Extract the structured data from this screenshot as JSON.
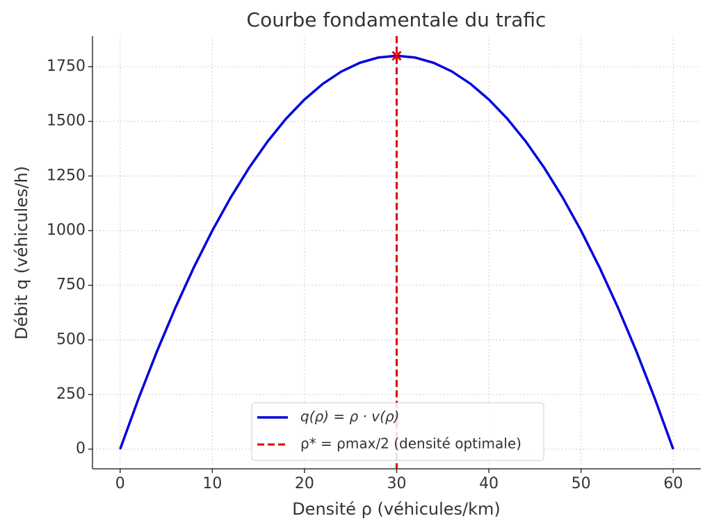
{
  "chart_data": {
    "type": "line",
    "title": "Courbe fondamentale du trafic",
    "x_label": "Densité ρ (véhicules/km)",
    "y_label": "Débit q (véhicules/h)",
    "x": [
      0,
      2,
      4,
      6,
      8,
      10,
      12,
      14,
      16,
      18,
      20,
      22,
      24,
      26,
      28,
      30,
      32,
      34,
      36,
      38,
      40,
      42,
      44,
      46,
      48,
      50,
      52,
      54,
      56,
      58,
      60
    ],
    "series": [
      {
        "name": "q(ρ) = ρ · v(ρ)",
        "color": "#0000dd",
        "values": [
          0,
          232,
          448,
          648,
          832,
          1000,
          1152,
          1288,
          1408,
          1512,
          1600,
          1672,
          1728,
          1768,
          1792,
          1800,
          1792,
          1768,
          1728,
          1672,
          1600,
          1512,
          1408,
          1288,
          1152,
          1000,
          832,
          648,
          448,
          232,
          0
        ]
      }
    ],
    "optimal_line": {
      "name": "ρ* = ρmax/2 (densité optimale)",
      "color": "#dd0000",
      "x": 30
    },
    "optimum_point": {
      "x": 30,
      "y": 1800,
      "color": "#dd0000"
    },
    "xlim": [
      -3,
      63
    ],
    "ylim": [
      -90,
      1890
    ],
    "xticks": [
      0,
      10,
      20,
      30,
      40,
      50,
      60
    ],
    "yticks": [
      0,
      250,
      500,
      750,
      1000,
      1250,
      1500,
      1750
    ],
    "grid": true
  }
}
